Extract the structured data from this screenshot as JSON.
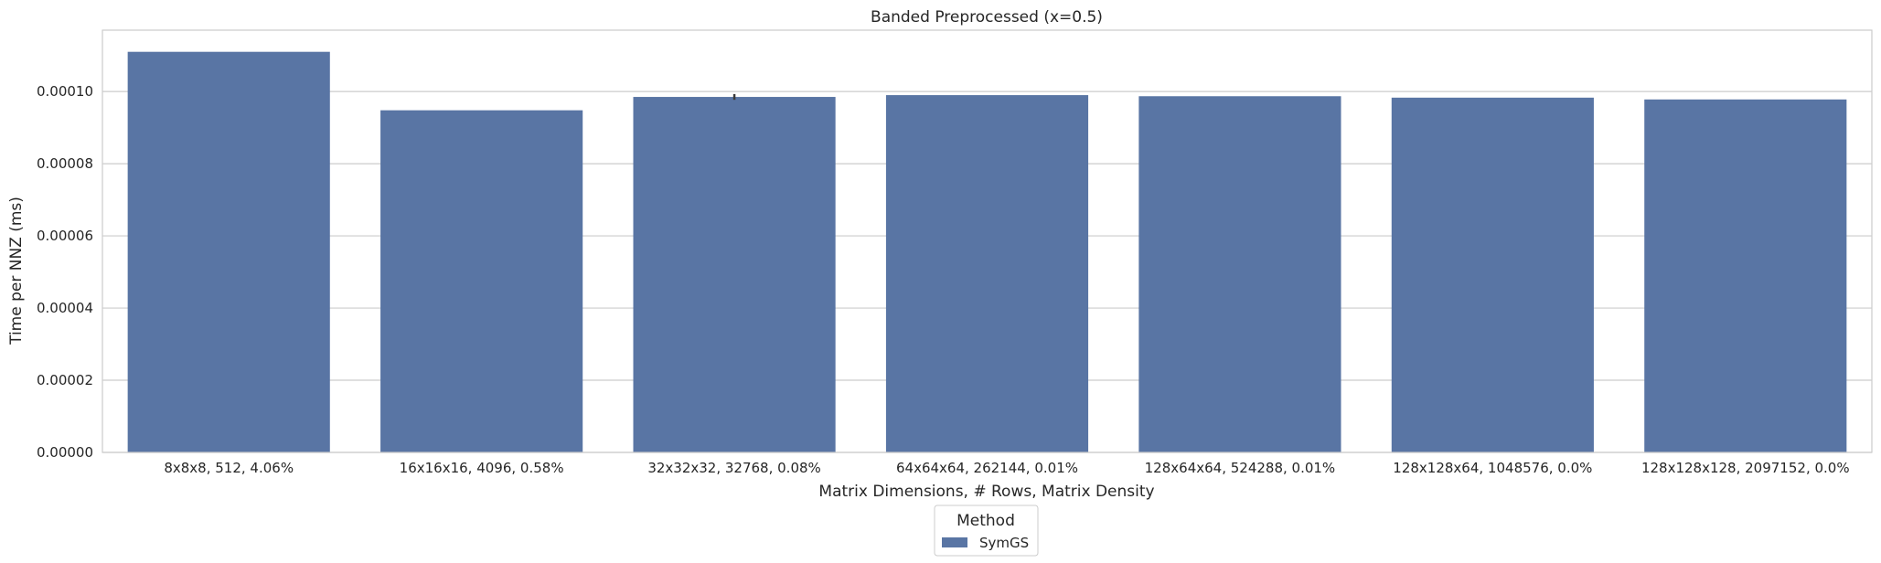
{
  "chart_data": {
    "type": "bar",
    "title": "Banded Preprocessed (x=0.5)",
    "xlabel": "Matrix Dimensions, # Rows, Matrix Density",
    "ylabel": "Time per NNZ (ms)",
    "categories": [
      "8x8x8, 512, 4.06%",
      "16x16x16, 4096, 0.58%",
      "32x32x32, 32768, 0.08%",
      "64x64x64, 262144, 0.01%",
      "128x64x64, 524288, 0.01%",
      "128x128x64, 1048576, 0.0%",
      "128x128x128, 2097152, 0.0%"
    ],
    "series": [
      {
        "name": "SymGS",
        "values": [
          0.000111,
          9.48e-05,
          9.85e-05,
          9.9e-05,
          9.87e-05,
          9.83e-05,
          9.78e-05
        ],
        "error_high": [
          null,
          null,
          9.93e-05,
          null,
          null,
          null,
          null
        ],
        "error_low": [
          null,
          null,
          9.77e-05,
          null,
          null,
          null,
          null
        ]
      }
    ],
    "ylim": [
      0,
      0.000117
    ],
    "yticks": [
      "0.00000",
      "0.00002",
      "0.00004",
      "0.00006",
      "0.00008",
      "0.00010"
    ],
    "ytick_values": [
      0,
      2e-05,
      4e-05,
      6e-05,
      8e-05,
      0.0001
    ],
    "grid": "horizontal",
    "legend": {
      "title": "Method",
      "placement": "bottom-center"
    },
    "colors": {
      "bar": "#5975a4",
      "grid": "#cccccc",
      "frame": "#cccccc",
      "error": "#3a3a3a"
    }
  }
}
